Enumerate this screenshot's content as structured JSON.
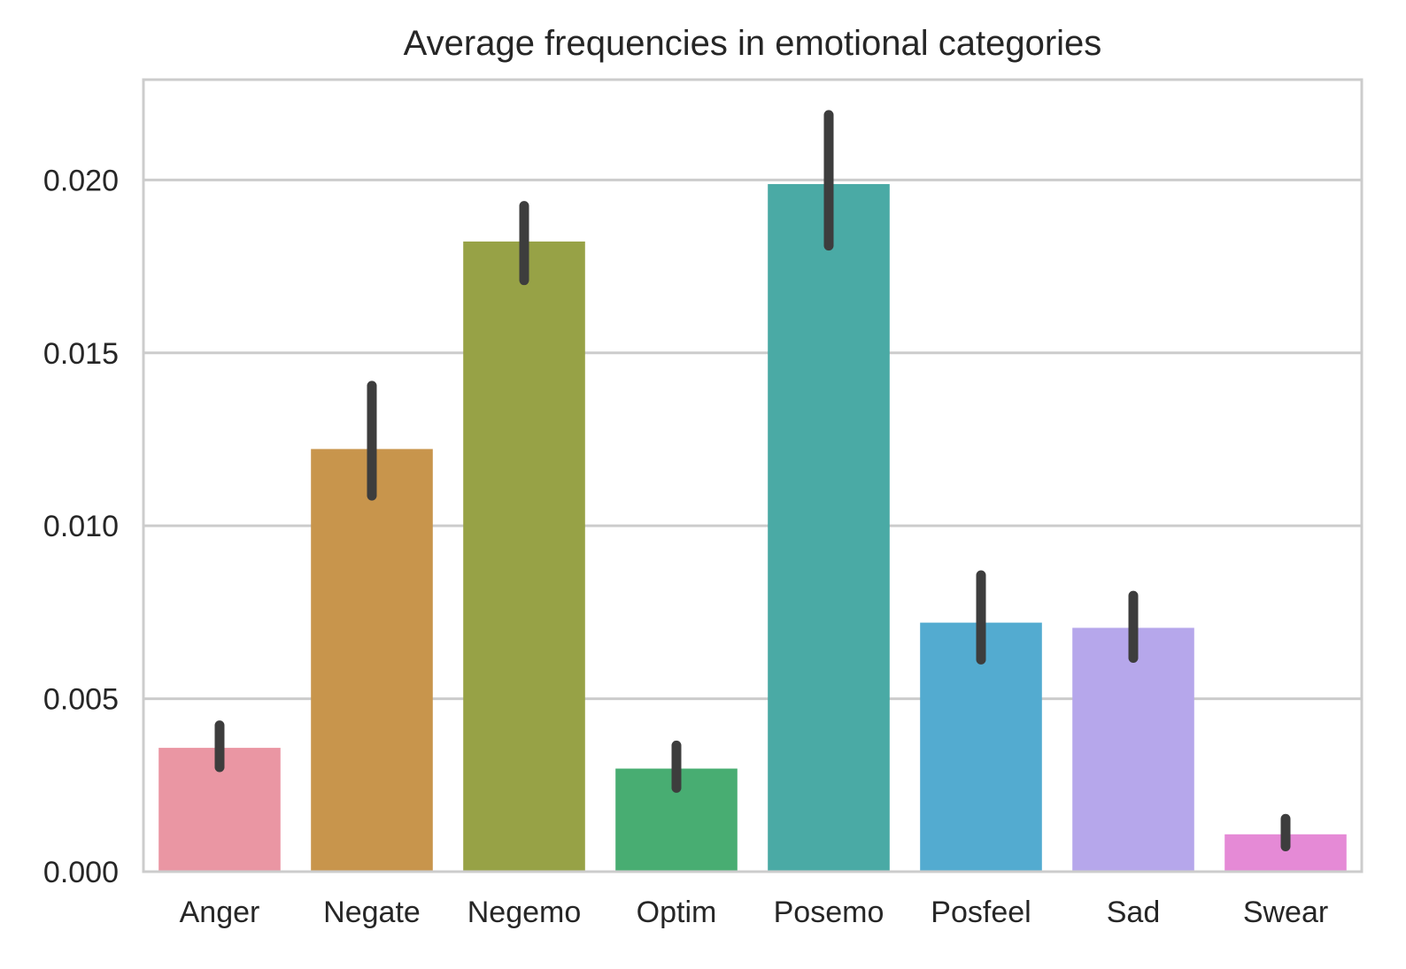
{
  "chart_data": {
    "type": "bar",
    "title": "Average frequencies in emotional categories",
    "xlabel": "",
    "ylabel": "",
    "categories": [
      "Anger",
      "Negate",
      "Negemo",
      "Optim",
      "Posemo",
      "Posfeel",
      "Sad",
      "Swear"
    ],
    "values": [
      0.00358,
      0.01222,
      0.01822,
      0.00298,
      0.01988,
      0.0072,
      0.00705,
      0.00108
    ],
    "error_low": [
      0.00302,
      0.01087,
      0.0171,
      0.00242,
      0.0181,
      0.00613,
      0.00618,
      0.00073
    ],
    "error_high": [
      0.00423,
      0.01405,
      0.01925,
      0.00365,
      0.02188,
      0.00857,
      0.00798,
      0.00153
    ],
    "colors": [
      "#ea96a3",
      "#c8954c",
      "#97a246",
      "#48ad72",
      "#4aaaa5",
      "#53abd0",
      "#b6a7eb",
      "#e58ad6"
    ],
    "ylim": [
      0,
      0.0229
    ],
    "yticks": [
      "0.000",
      "0.005",
      "0.010",
      "0.015",
      "0.020"
    ],
    "grid": true,
    "legend": "none"
  }
}
